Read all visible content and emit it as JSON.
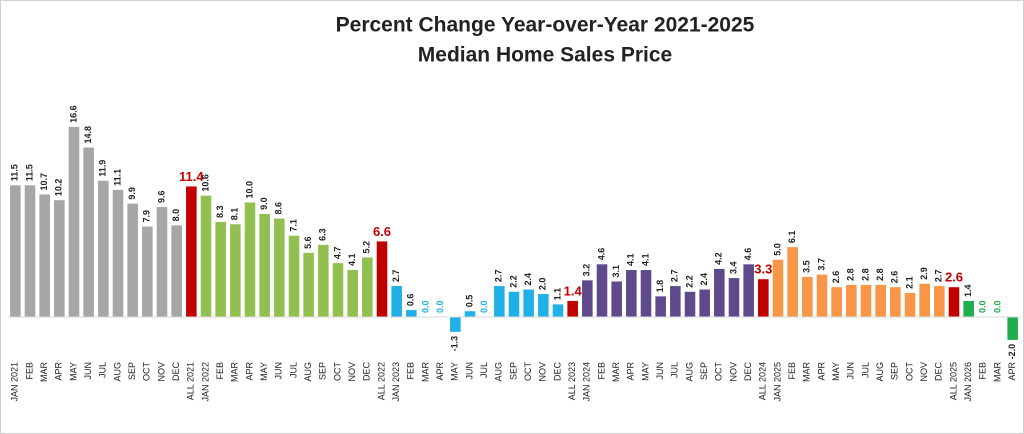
{
  "chart_data": {
    "type": "bar",
    "title": "Percent Change Year-over-Year 2021-2025",
    "subtitle": "Median Home Sales Price",
    "categories": [
      "JAN 2021",
      "FEB",
      "MAR",
      "APR",
      "MAY",
      "JUN",
      "JUL",
      "AUG",
      "SEP",
      "OCT",
      "NOV",
      "DEC",
      "ALL 2021",
      "JAN 2022",
      "FEB",
      "MAR",
      "APR",
      "MAY",
      "JUN",
      "JUL",
      "AUG",
      "SEP",
      "OCT",
      "NOV",
      "DEC",
      "ALL 2022",
      "JAN 2023",
      "FEB",
      "MAR",
      "APR",
      "MAY",
      "JUN",
      "JUL",
      "AUG",
      "SEP",
      "OCT",
      "NOV",
      "DEC",
      "ALL 2023",
      "JAN 2024",
      "FEB",
      "MAR",
      "APR",
      "MAY",
      "JUN",
      "JUL",
      "AUG",
      "SEP",
      "OCT",
      "NOV",
      "DEC",
      "ALL 2024",
      "JAN 2025",
      "FEB",
      "MAR",
      "APR",
      "MAY",
      "JUN",
      "JUL",
      "AUG",
      "SEP",
      "OCT",
      "NOV",
      "DEC",
      "ALL 2025",
      "JAN 2026",
      "FEB",
      "MAR",
      "APR"
    ],
    "values": [
      11.5,
      11.5,
      10.7,
      10.2,
      16.6,
      14.8,
      11.9,
      11.1,
      9.9,
      7.9,
      9.6,
      8.0,
      11.4,
      10.6,
      8.3,
      8.1,
      10.0,
      9.0,
      8.6,
      7.1,
      5.6,
      6.3,
      4.7,
      4.1,
      5.2,
      6.6,
      2.7,
      0.6,
      0.0,
      0.0,
      -1.3,
      0.5,
      0.0,
      2.7,
      2.2,
      2.4,
      2.0,
      1.1,
      1.4,
      3.2,
      4.6,
      3.1,
      4.1,
      4.1,
      1.8,
      2.7,
      2.2,
      2.4,
      4.2,
      3.4,
      4.6,
      3.3,
      5.0,
      6.1,
      3.5,
      3.7,
      2.6,
      2.8,
      2.8,
      2.8,
      2.6,
      2.1,
      2.9,
      2.7,
      2.6,
      1.4,
      0.0,
      0.0,
      -2.0
    ],
    "value_labels": [
      "11.5",
      "11.5",
      "10.7",
      "10.2",
      "16.6",
      "14.8",
      "11.9",
      "11.1",
      "9.9",
      "7.9",
      "9.6",
      "8.0",
      "11.4",
      "10.6",
      "8.3",
      "8.1",
      "10.0",
      "9.0",
      "8.6",
      "7.1",
      "5.6",
      "6.3",
      "4.7",
      "4.1",
      "5.2",
      "6.6",
      "2.7",
      "0.6",
      "0.0",
      "0.0",
      "-1.3",
      "0.5",
      "0.0",
      "2.7",
      "2.2",
      "2.4",
      "2.0",
      "1.1",
      "1.4",
      "3.2",
      "4.6",
      "3.1",
      "4.1",
      "4.1",
      "1.8",
      "2.7",
      "2.2",
      "2.4",
      "4.2",
      "3.4",
      "4.6",
      "3.3",
      "5.0",
      "6.1",
      "3.5",
      "3.7",
      "2.6",
      "2.8",
      "2.8",
      "2.8",
      "2.6",
      "2.1",
      "2.9",
      "2.7",
      "2.6",
      "1.4",
      "0.0",
      "0.0",
      "-2.0"
    ],
    "colors": [
      "#a6a6a6",
      "#a6a6a6",
      "#a6a6a6",
      "#a6a6a6",
      "#a6a6a6",
      "#a6a6a6",
      "#a6a6a6",
      "#a6a6a6",
      "#a6a6a6",
      "#a6a6a6",
      "#a6a6a6",
      "#a6a6a6",
      "#c00000",
      "#92c050",
      "#92c050",
      "#92c050",
      "#92c050",
      "#92c050",
      "#92c050",
      "#92c050",
      "#92c050",
      "#92c050",
      "#92c050",
      "#92c050",
      "#92c050",
      "#c00000",
      "#1fb0e8",
      "#1fb0e8",
      "#1fb0e8",
      "#1fb0e8",
      "#1fb0e8",
      "#1fb0e8",
      "#1fb0e8",
      "#1fb0e8",
      "#1fb0e8",
      "#1fb0e8",
      "#1fb0e8",
      "#1fb0e8",
      "#c00000",
      "#5e4a8b",
      "#5e4a8b",
      "#5e4a8b",
      "#5e4a8b",
      "#5e4a8b",
      "#5e4a8b",
      "#5e4a8b",
      "#5e4a8b",
      "#5e4a8b",
      "#5e4a8b",
      "#5e4a8b",
      "#5e4a8b",
      "#c00000",
      "#f79646",
      "#f79646",
      "#f79646",
      "#f79646",
      "#f79646",
      "#f79646",
      "#f79646",
      "#f79646",
      "#f79646",
      "#f79646",
      "#f79646",
      "#f79646",
      "#c00000",
      "#1fae4d",
      "#1fae4d",
      "#1fae4d",
      "#1fae4d"
    ],
    "highlight_color": "#c00000",
    "ylim": [
      -2.5,
      17.5
    ]
  }
}
